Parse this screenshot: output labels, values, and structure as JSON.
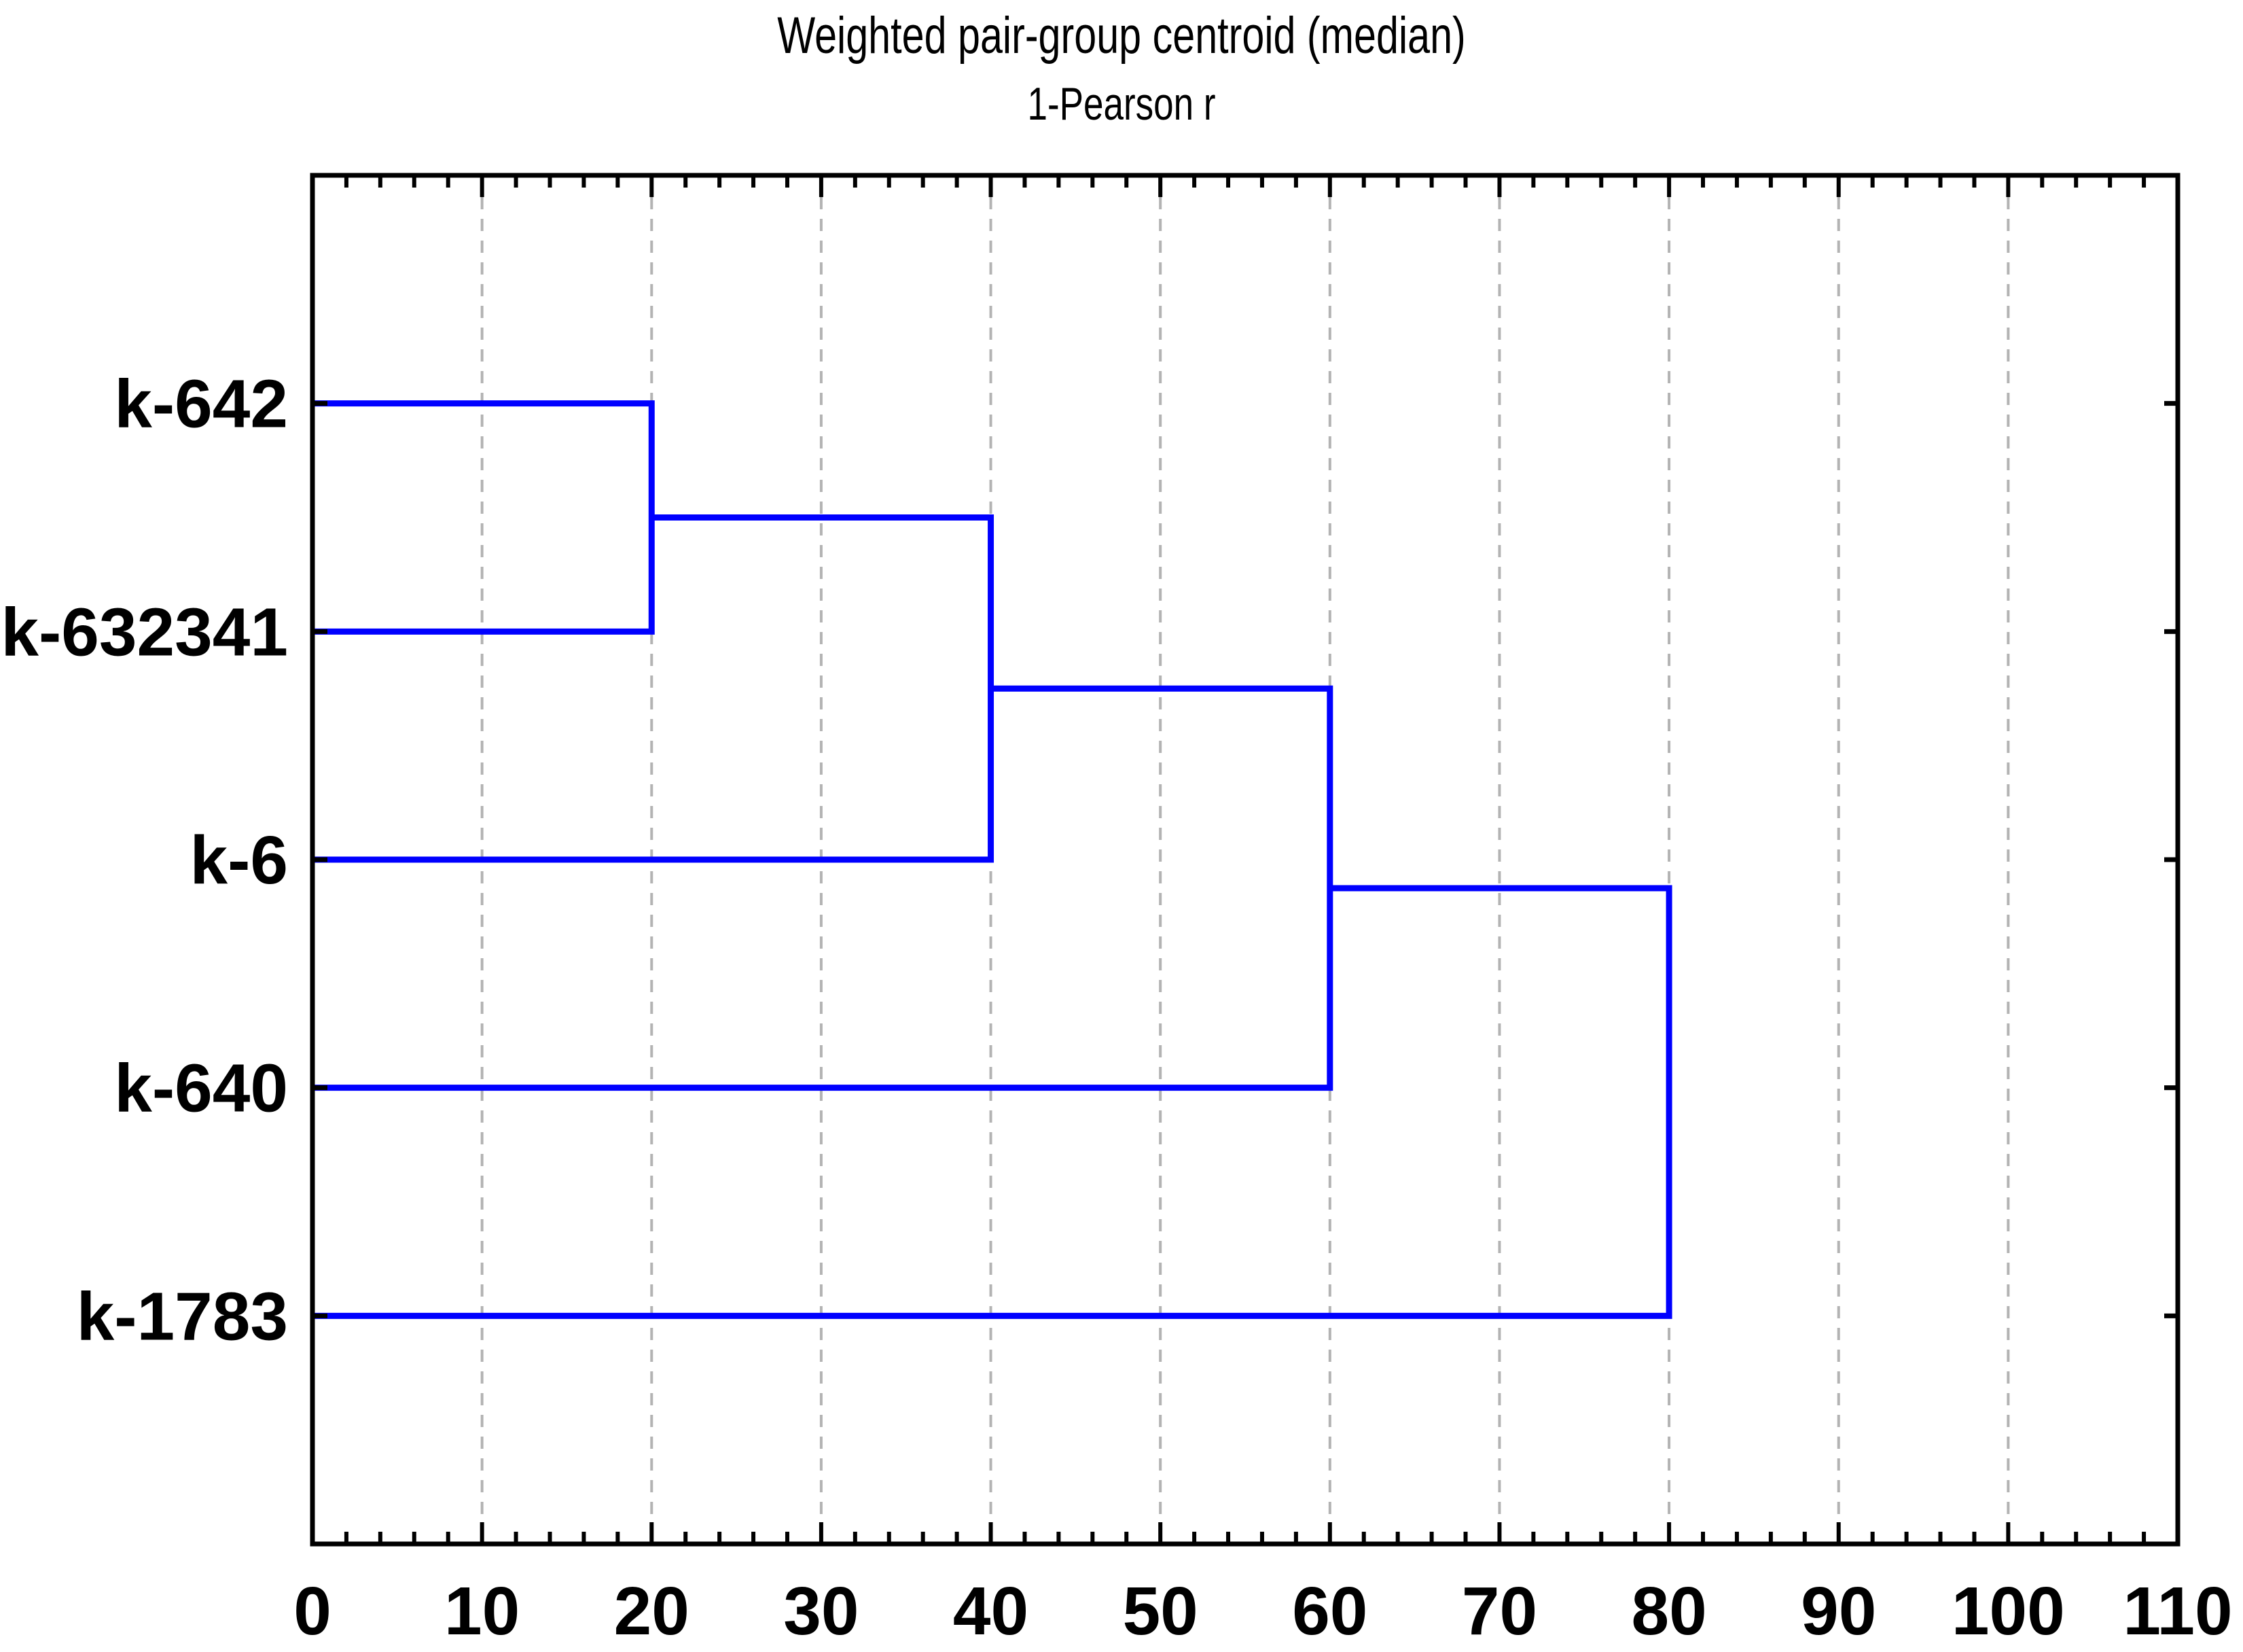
{
  "chart_data": {
    "type": "dendrogram",
    "title": "Weighted pair-group centroid (median)",
    "subtitle": "1-Pearson r",
    "orientation": "horizontal, leaves on left, linkage distance on x axis",
    "leaves": [
      "k-642",
      "k-632341",
      "k-6",
      "k-640",
      "k-1783"
    ],
    "merges": [
      {
        "a": "leaf:0",
        "b": "leaf:1",
        "height": 20
      },
      {
        "a": "merge:0",
        "b": "leaf:2",
        "height": 40
      },
      {
        "a": "merge:1",
        "b": "leaf:3",
        "height": 60
      },
      {
        "a": "merge:2",
        "b": "leaf:4",
        "height": 80
      }
    ],
    "x_axis": {
      "min": 0,
      "max": 110,
      "major_step": 10,
      "minor_step": 2,
      "major_tick_labels": [
        "0",
        "10",
        "20",
        "30",
        "40",
        "50",
        "60",
        "70",
        "80",
        "90",
        "100",
        "110"
      ]
    },
    "grid": {
      "vertical_dashed_at": [
        10,
        20,
        30,
        40,
        50,
        60,
        70,
        80,
        90,
        100
      ]
    },
    "colors": {
      "link": "#0000ff",
      "axis": "#000000",
      "grid": "#b3b3b3",
      "text": "#000000",
      "background": "#ffffff"
    }
  }
}
